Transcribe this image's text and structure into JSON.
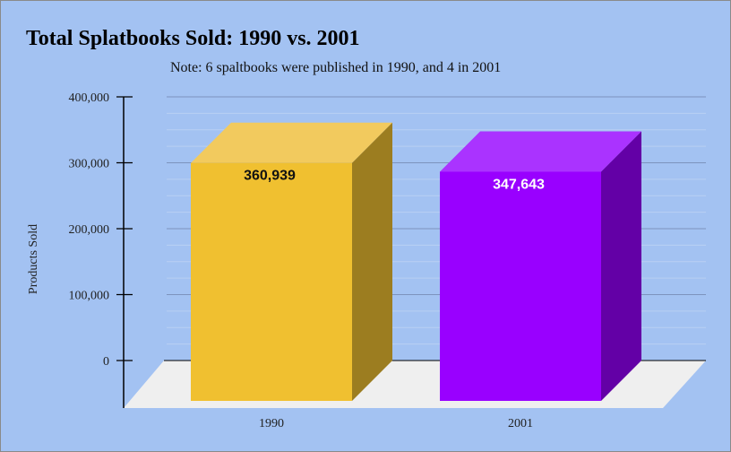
{
  "chart_data": {
    "type": "bar",
    "title": "Total Splatbooks Sold: 1990 vs. 2001",
    "subtitle": "Note: 6 spaltbooks were published in 1990, and 4 in 2001",
    "xlabel": "",
    "ylabel": "Products Sold",
    "categories": [
      "1990",
      "2001"
    ],
    "values": [
      360939,
      347643
    ],
    "data_labels": [
      "360,939",
      "347,643"
    ],
    "yticks": [
      "0",
      "100,000",
      "200,000",
      "300,000",
      "400,000"
    ],
    "ylim": [
      0,
      400000
    ],
    "grid": true,
    "legend": "none",
    "bar_style": "3d",
    "colors": {
      "background": "#a3c2f2",
      "grid_major": "#7d93bd",
      "grid_minor": "#b9cff3",
      "floor": "#efefef",
      "bar_1990_front": "#f0c030",
      "bar_1990_top": "#f2ca5e",
      "bar_1990_side": "#9c7d20",
      "bar_2001_front": "#9900ff",
      "bar_2001_top": "#aa33ff",
      "bar_2001_side": "#6300a6",
      "label_1990": "#111111",
      "label_2001": "#ffffff"
    }
  }
}
